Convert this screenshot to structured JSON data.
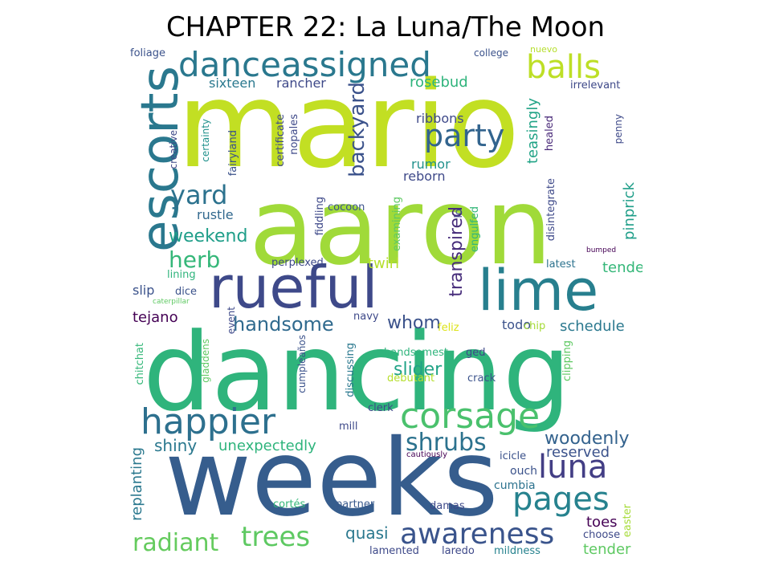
{
  "title": "CHAPTER 22: La Luna/The Moon",
  "words": [
    {
      "text": "mario",
      "color": "#c2df23",
      "vertical": false
    },
    {
      "text": "aaron",
      "color": "#a0da39",
      "vertical": false
    },
    {
      "text": "dancing",
      "color": "#2fb47c",
      "vertical": false
    },
    {
      "text": "weeks",
      "color": "#365d8d",
      "vertical": false
    },
    {
      "text": "rueful",
      "color": "#3e4989",
      "vertical": false
    },
    {
      "text": "lime",
      "color": "#277f8e",
      "vertical": false
    },
    {
      "text": "escorts",
      "color": "#2a788e",
      "vertical": true
    },
    {
      "text": "danceassigned",
      "color": "#2a788e",
      "vertical": false
    },
    {
      "text": "balls",
      "color": "#bddf26",
      "vertical": false
    },
    {
      "text": "happier",
      "color": "#2d708e",
      "vertical": false
    },
    {
      "text": "corsage",
      "color": "#4ac16d",
      "vertical": false
    },
    {
      "text": "party",
      "color": "#32648e",
      "vertical": false
    },
    {
      "text": "yard",
      "color": "#2c728e",
      "vertical": false
    },
    {
      "text": "pages",
      "color": "#26828e",
      "vertical": false
    },
    {
      "text": "awareness",
      "color": "#3a548c",
      "vertical": false
    },
    {
      "text": "trees",
      "color": "#5ec962",
      "vertical": false
    },
    {
      "text": "radiant",
      "color": "#65cb5e",
      "vertical": false
    },
    {
      "text": "shrubs",
      "color": "#2c728e",
      "vertical": false
    },
    {
      "text": "luna",
      "color": "#433e85",
      "vertical": false
    },
    {
      "text": "herb",
      "color": "#35b779",
      "vertical": false
    },
    {
      "text": "weekend",
      "color": "#1f9e89",
      "vertical": false
    },
    {
      "text": "handsome",
      "color": "#306a8e",
      "vertical": false
    },
    {
      "text": "backyard",
      "color": "#3b528b",
      "vertical": true
    },
    {
      "text": "woodenly",
      "color": "#33628d",
      "vertical": false
    },
    {
      "text": "transpired",
      "color": "#472d7b",
      "vertical": true
    },
    {
      "text": "whom",
      "color": "#3b528b",
      "vertical": false
    },
    {
      "text": "slider",
      "color": "#20a386",
      "vertical": false
    },
    {
      "text": "shiny",
      "color": "#2a788e",
      "vertical": false
    },
    {
      "text": "unexpectedly",
      "color": "#2fb47c",
      "vertical": false
    },
    {
      "text": "reserved",
      "color": "#3b528b",
      "vertical": false
    },
    {
      "text": "quasi",
      "color": "#2a788e",
      "vertical": false
    },
    {
      "text": "tejano",
      "color": "#440154",
      "vertical": false
    },
    {
      "text": "twirl",
      "color": "#b5de2b",
      "vertical": false
    },
    {
      "text": "schedule",
      "color": "#2a788e",
      "vertical": false
    },
    {
      "text": "tended",
      "color": "#35b779",
      "vertical": false
    },
    {
      "text": "tender",
      "color": "#5ec962",
      "vertical": false
    },
    {
      "text": "toes",
      "color": "#440154",
      "vertical": false
    },
    {
      "text": "pinprick",
      "color": "#1f9e89",
      "vertical": true
    },
    {
      "text": "teasingly",
      "color": "#20a386",
      "vertical": true
    },
    {
      "text": "sixteen",
      "color": "#2a788e",
      "vertical": false
    },
    {
      "text": "rancher",
      "color": "#3e4989",
      "vertical": false
    },
    {
      "text": "rosebud",
      "color": "#2fb47c",
      "vertical": false
    },
    {
      "text": "ribbons",
      "color": "#3e4989",
      "vertical": false
    },
    {
      "text": "rumor",
      "color": "#21918c",
      "vertical": false
    },
    {
      "text": "reborn",
      "color": "#3e4989",
      "vertical": false
    },
    {
      "text": "rustle",
      "color": "#31688e",
      "vertical": false
    },
    {
      "text": "slip",
      "color": "#3b528b",
      "vertical": false
    },
    {
      "text": "todo",
      "color": "#3b528b",
      "vertical": false
    },
    {
      "text": "replanting",
      "color": "#2a788e",
      "vertical": true
    },
    {
      "text": "cumbia",
      "color": "#2c728e",
      "vertical": false
    },
    {
      "text": "ouch",
      "color": "#3b528b",
      "vertical": false
    },
    {
      "text": "damas",
      "color": "#3e4989",
      "vertical": false
    },
    {
      "text": "partner",
      "color": "#38598c",
      "vertical": false
    },
    {
      "text": "lamented",
      "color": "#3e4989",
      "vertical": false
    },
    {
      "text": "laredo",
      "color": "#3e4989",
      "vertical": false
    },
    {
      "text": "mildness",
      "color": "#26828e",
      "vertical": false
    },
    {
      "text": "choose",
      "color": "#3e4989",
      "vertical": false
    },
    {
      "text": "cortés",
      "color": "#35b779",
      "vertical": false
    },
    {
      "text": "easter",
      "color": "#a5db36",
      "vertical": true
    },
    {
      "text": "icicle",
      "color": "#3b528b",
      "vertical": false
    },
    {
      "text": "cautiously",
      "color": "#440154",
      "vertical": false
    },
    {
      "text": "mill",
      "color": "#3e4989",
      "vertical": false
    },
    {
      "text": "clerk",
      "color": "#3e4989",
      "vertical": false
    },
    {
      "text": "debutant",
      "color": "#b5de2b",
      "vertical": false
    },
    {
      "text": "crack",
      "color": "#3b528b",
      "vertical": false
    },
    {
      "text": "handsomest",
      "color": "#2fb47c",
      "vertical": false
    },
    {
      "text": "ged",
      "color": "#3e4989",
      "vertical": false
    },
    {
      "text": "feliz",
      "color": "#dde318",
      "vertical": false
    },
    {
      "text": "chip",
      "color": "#a5db36",
      "vertical": false
    },
    {
      "text": "clipping",
      "color": "#5ec962",
      "vertical": true
    },
    {
      "text": "discussing",
      "color": "#2a788e",
      "vertical": true
    },
    {
      "text": "cumpleaños",
      "color": "#3b528b",
      "vertical": true
    },
    {
      "text": "event",
      "color": "#3e4989",
      "vertical": true
    },
    {
      "text": "gladdens",
      "color": "#5ec962",
      "vertical": true
    },
    {
      "text": "chitchat",
      "color": "#35b779",
      "vertical": true
    },
    {
      "text": "navy",
      "color": "#3e4989",
      "vertical": false
    },
    {
      "text": "dice",
      "color": "#3b528b",
      "vertical": false
    },
    {
      "text": "caterpillar",
      "color": "#5ec962",
      "vertical": false
    },
    {
      "text": "lining",
      "color": "#2fb47c",
      "vertical": false
    },
    {
      "text": "perplexed",
      "color": "#3e4989",
      "vertical": false
    },
    {
      "text": "latest",
      "color": "#2c728e",
      "vertical": false
    },
    {
      "text": "bumped",
      "color": "#440154",
      "vertical": false
    },
    {
      "text": "cocoon",
      "color": "#3b528b",
      "vertical": false
    },
    {
      "text": "fiddling",
      "color": "#3e4989",
      "vertical": true
    },
    {
      "text": "examining",
      "color": "#5ec962",
      "vertical": true
    },
    {
      "text": "lo",
      "color": "#3e4989",
      "vertical": true
    },
    {
      "text": "engulfed",
      "color": "#35b779",
      "vertical": true
    },
    {
      "text": "disintegrate",
      "color": "#3e4989",
      "vertical": true
    },
    {
      "text": "healed",
      "color": "#482878",
      "vertical": true
    },
    {
      "text": "penny",
      "color": "#3e4989",
      "vertical": true
    },
    {
      "text": "irrelevant",
      "color": "#3e4989",
      "vertical": false
    },
    {
      "text": "college",
      "color": "#3b528b",
      "vertical": false
    },
    {
      "text": "nuevo",
      "color": "#b5de2b",
      "vertical": false
    },
    {
      "text": "foliage",
      "color": "#3b528b",
      "vertical": false
    },
    {
      "text": "nopales",
      "color": "#3e4989",
      "vertical": true
    },
    {
      "text": "certificate",
      "color": "#3e4989",
      "vertical": true
    },
    {
      "text": "fairyland",
      "color": "#3b528b",
      "vertical": true
    },
    {
      "text": "certainty",
      "color": "#21918c",
      "vertical": true
    },
    {
      "text": "creative",
      "color": "#3e4989",
      "vertical": true
    }
  ]
}
